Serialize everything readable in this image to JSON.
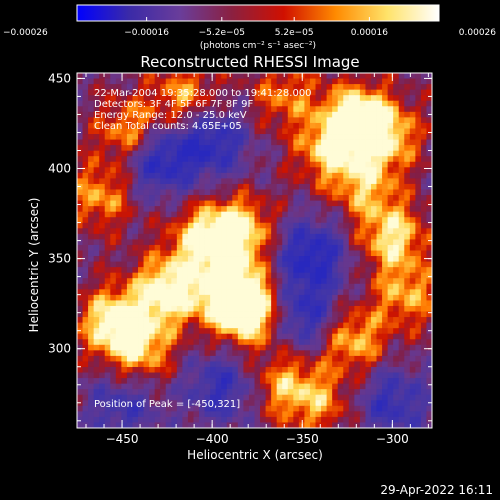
{
  "chart_data": {
    "type": "heatmap",
    "title": "Reconstructed RHESSI Image",
    "xlabel": "Heliocentric X (arcsec)",
    "ylabel": "Heliocentric Y (arcsec)",
    "xlim": [
      -475,
      -278
    ],
    "ylim": [
      256,
      453
    ],
    "x_ticks": [
      {
        "v": -450,
        "label": "−450"
      },
      {
        "v": -400,
        "label": "−400"
      },
      {
        "v": -350,
        "label": "−350"
      },
      {
        "v": -300,
        "label": "−300"
      }
    ],
    "y_ticks": [
      {
        "v": 300,
        "label": "300"
      },
      {
        "v": 350,
        "label": "350"
      },
      {
        "v": 400,
        "label": "400"
      },
      {
        "v": 450,
        "label": "450"
      }
    ],
    "colorbar": {
      "range": [
        -0.00026,
        0.00026
      ],
      "ticks": [
        {
          "v": -0.00026,
          "label": "−0.00026"
        },
        {
          "v": -0.00016,
          "label": "−0.00016"
        },
        {
          "v": -5.2e-05,
          "label": "−5.2e−05"
        },
        {
          "v": 5.2e-05,
          "label": "5.2e−05"
        },
        {
          "v": 0.00016,
          "label": "0.00016"
        },
        {
          "v": 0.00026,
          "label": "0.00026"
        }
      ],
      "unit_label": "(photons cm⁻² s⁻¹ asec⁻²)",
      "colors": [
        "#0000ff",
        "#3a2aa8",
        "#6a3d9a",
        "#8b2040",
        "#d01000",
        "#ff8a00",
        "#ffe36a",
        "#ffffff"
      ]
    },
    "info_lines": [
      "22-Mar-2004 19:35:28.000 to 19:41:28.000",
      "Detectors: 3F 4F 5F 6F 7F 8F 9F",
      "Energy Range: 12.0 - 25.0 keV",
      "Clean    Total counts: 4.65E+05"
    ],
    "peak_text": "Position of Peak = [-450,321]",
    "blobs": [
      {
        "x": -405,
        "y": 360,
        "a": 0.8
      },
      {
        "x": -425,
        "y": 332,
        "a": 1.0
      },
      {
        "x": -390,
        "y": 331,
        "a": 1.0
      },
      {
        "x": -378,
        "y": 320,
        "a": 1.0
      },
      {
        "x": -455,
        "y": 315,
        "a": 0.9
      },
      {
        "x": -440,
        "y": 300,
        "a": 0.7
      },
      {
        "x": -385,
        "y": 365,
        "a": 0.9
      },
      {
        "x": -445,
        "y": 420,
        "a": 0.7
      },
      {
        "x": -462,
        "y": 385,
        "a": 0.6
      },
      {
        "x": -320,
        "y": 428,
        "a": 1.0
      },
      {
        "x": -335,
        "y": 410,
        "a": 0.7
      },
      {
        "x": -303,
        "y": 418,
        "a": 0.7
      },
      {
        "x": -300,
        "y": 362,
        "a": 0.8
      },
      {
        "x": -315,
        "y": 390,
        "a": 0.6
      },
      {
        "x": -292,
        "y": 330,
        "a": 0.6
      },
      {
        "x": -360,
        "y": 280,
        "a": 0.6
      },
      {
        "x": -322,
        "y": 305,
        "a": 0.7
      },
      {
        "x": -340,
        "y": 270,
        "a": 0.5
      },
      {
        "x": -415,
        "y": 440,
        "a": 0.6
      },
      {
        "x": -360,
        "y": 440,
        "a": 0.5
      }
    ],
    "voids": [
      {
        "x": -430,
        "y": 405,
        "a": 0.8
      },
      {
        "x": -400,
        "y": 415,
        "a": 0.7
      },
      {
        "x": -345,
        "y": 352,
        "a": 0.8
      },
      {
        "x": -350,
        "y": 318,
        "a": 0.7
      },
      {
        "x": -395,
        "y": 278,
        "a": 0.6
      },
      {
        "x": -450,
        "y": 268,
        "a": 0.5
      },
      {
        "x": -300,
        "y": 270,
        "a": 0.6
      }
    ]
  },
  "timestamp": "29-Apr-2022 16:11"
}
